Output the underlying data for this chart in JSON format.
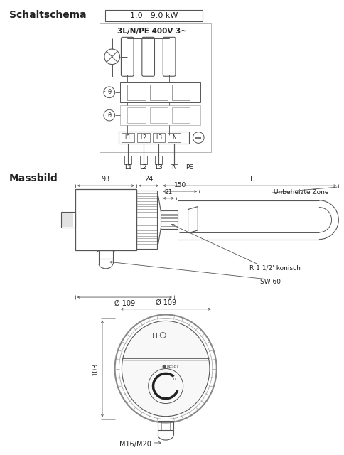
{
  "title": "Schaltschema",
  "title2": "Massbild",
  "bg_color": "#ffffff",
  "line_color": "#555555",
  "text_color": "#222222",
  "schaltschema_label": "1.0 - 9.0 kW",
  "voltage_label": "3L/N/PE 400V 3~",
  "terminal_labels": [
    "L1",
    "L2",
    "L3",
    "N"
  ],
  "bottom_labels": [
    "L1",
    "L2",
    "L3",
    "N",
    "PE"
  ],
  "dim_93": "93",
  "dim_24": "24",
  "dim_EL": "EL",
  "dim_150": "150",
  "dim_21": "21",
  "dim_109": "Ø 109",
  "dim_103": "103",
  "label_unbeheizte": "Unbeheizte Zone",
  "label_r": "R 1 1/2’ konisch",
  "label_sw": "SW 60",
  "label_m": "M16/M20"
}
